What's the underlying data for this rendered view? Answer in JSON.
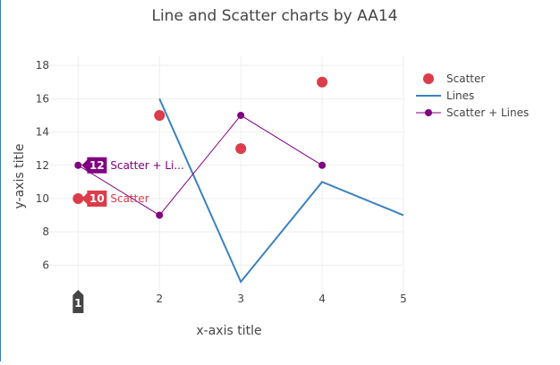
{
  "chart_data": {
    "type": "line",
    "title": "Line and Scatter charts by AA14",
    "xlabel": "x-axis title",
    "ylabel": "y-axis title",
    "xlim": [
      0.6,
      5
    ],
    "ylim": [
      4.3,
      18.6
    ],
    "x_ticks": [
      1,
      2,
      3,
      4,
      5
    ],
    "y_ticks": [
      6,
      8,
      10,
      12,
      14,
      16,
      18
    ],
    "grid": true,
    "legend_position": "top-right",
    "series": [
      {
        "name": "Scatter",
        "mode": "markers",
        "color": "#dc3d4b",
        "x": [
          1,
          2,
          3,
          4
        ],
        "y": [
          10,
          15,
          13,
          17
        ]
      },
      {
        "name": "Lines",
        "mode": "lines",
        "color": "#3b82bf",
        "x": [
          2,
          3,
          4,
          5
        ],
        "y": [
          16,
          5,
          11,
          9
        ]
      },
      {
        "name": "Scatter + Lines",
        "mode": "lines+markers",
        "color": "#800080",
        "x": [
          1,
          2,
          3,
          4
        ],
        "y": [
          12,
          9,
          15,
          12
        ]
      }
    ],
    "hover": {
      "x_label": "1",
      "items": [
        {
          "series_index": 2,
          "value": "12",
          "name": "Scatter + Li..."
        },
        {
          "series_index": 0,
          "value": "10",
          "name": "Scatter"
        }
      ]
    }
  }
}
